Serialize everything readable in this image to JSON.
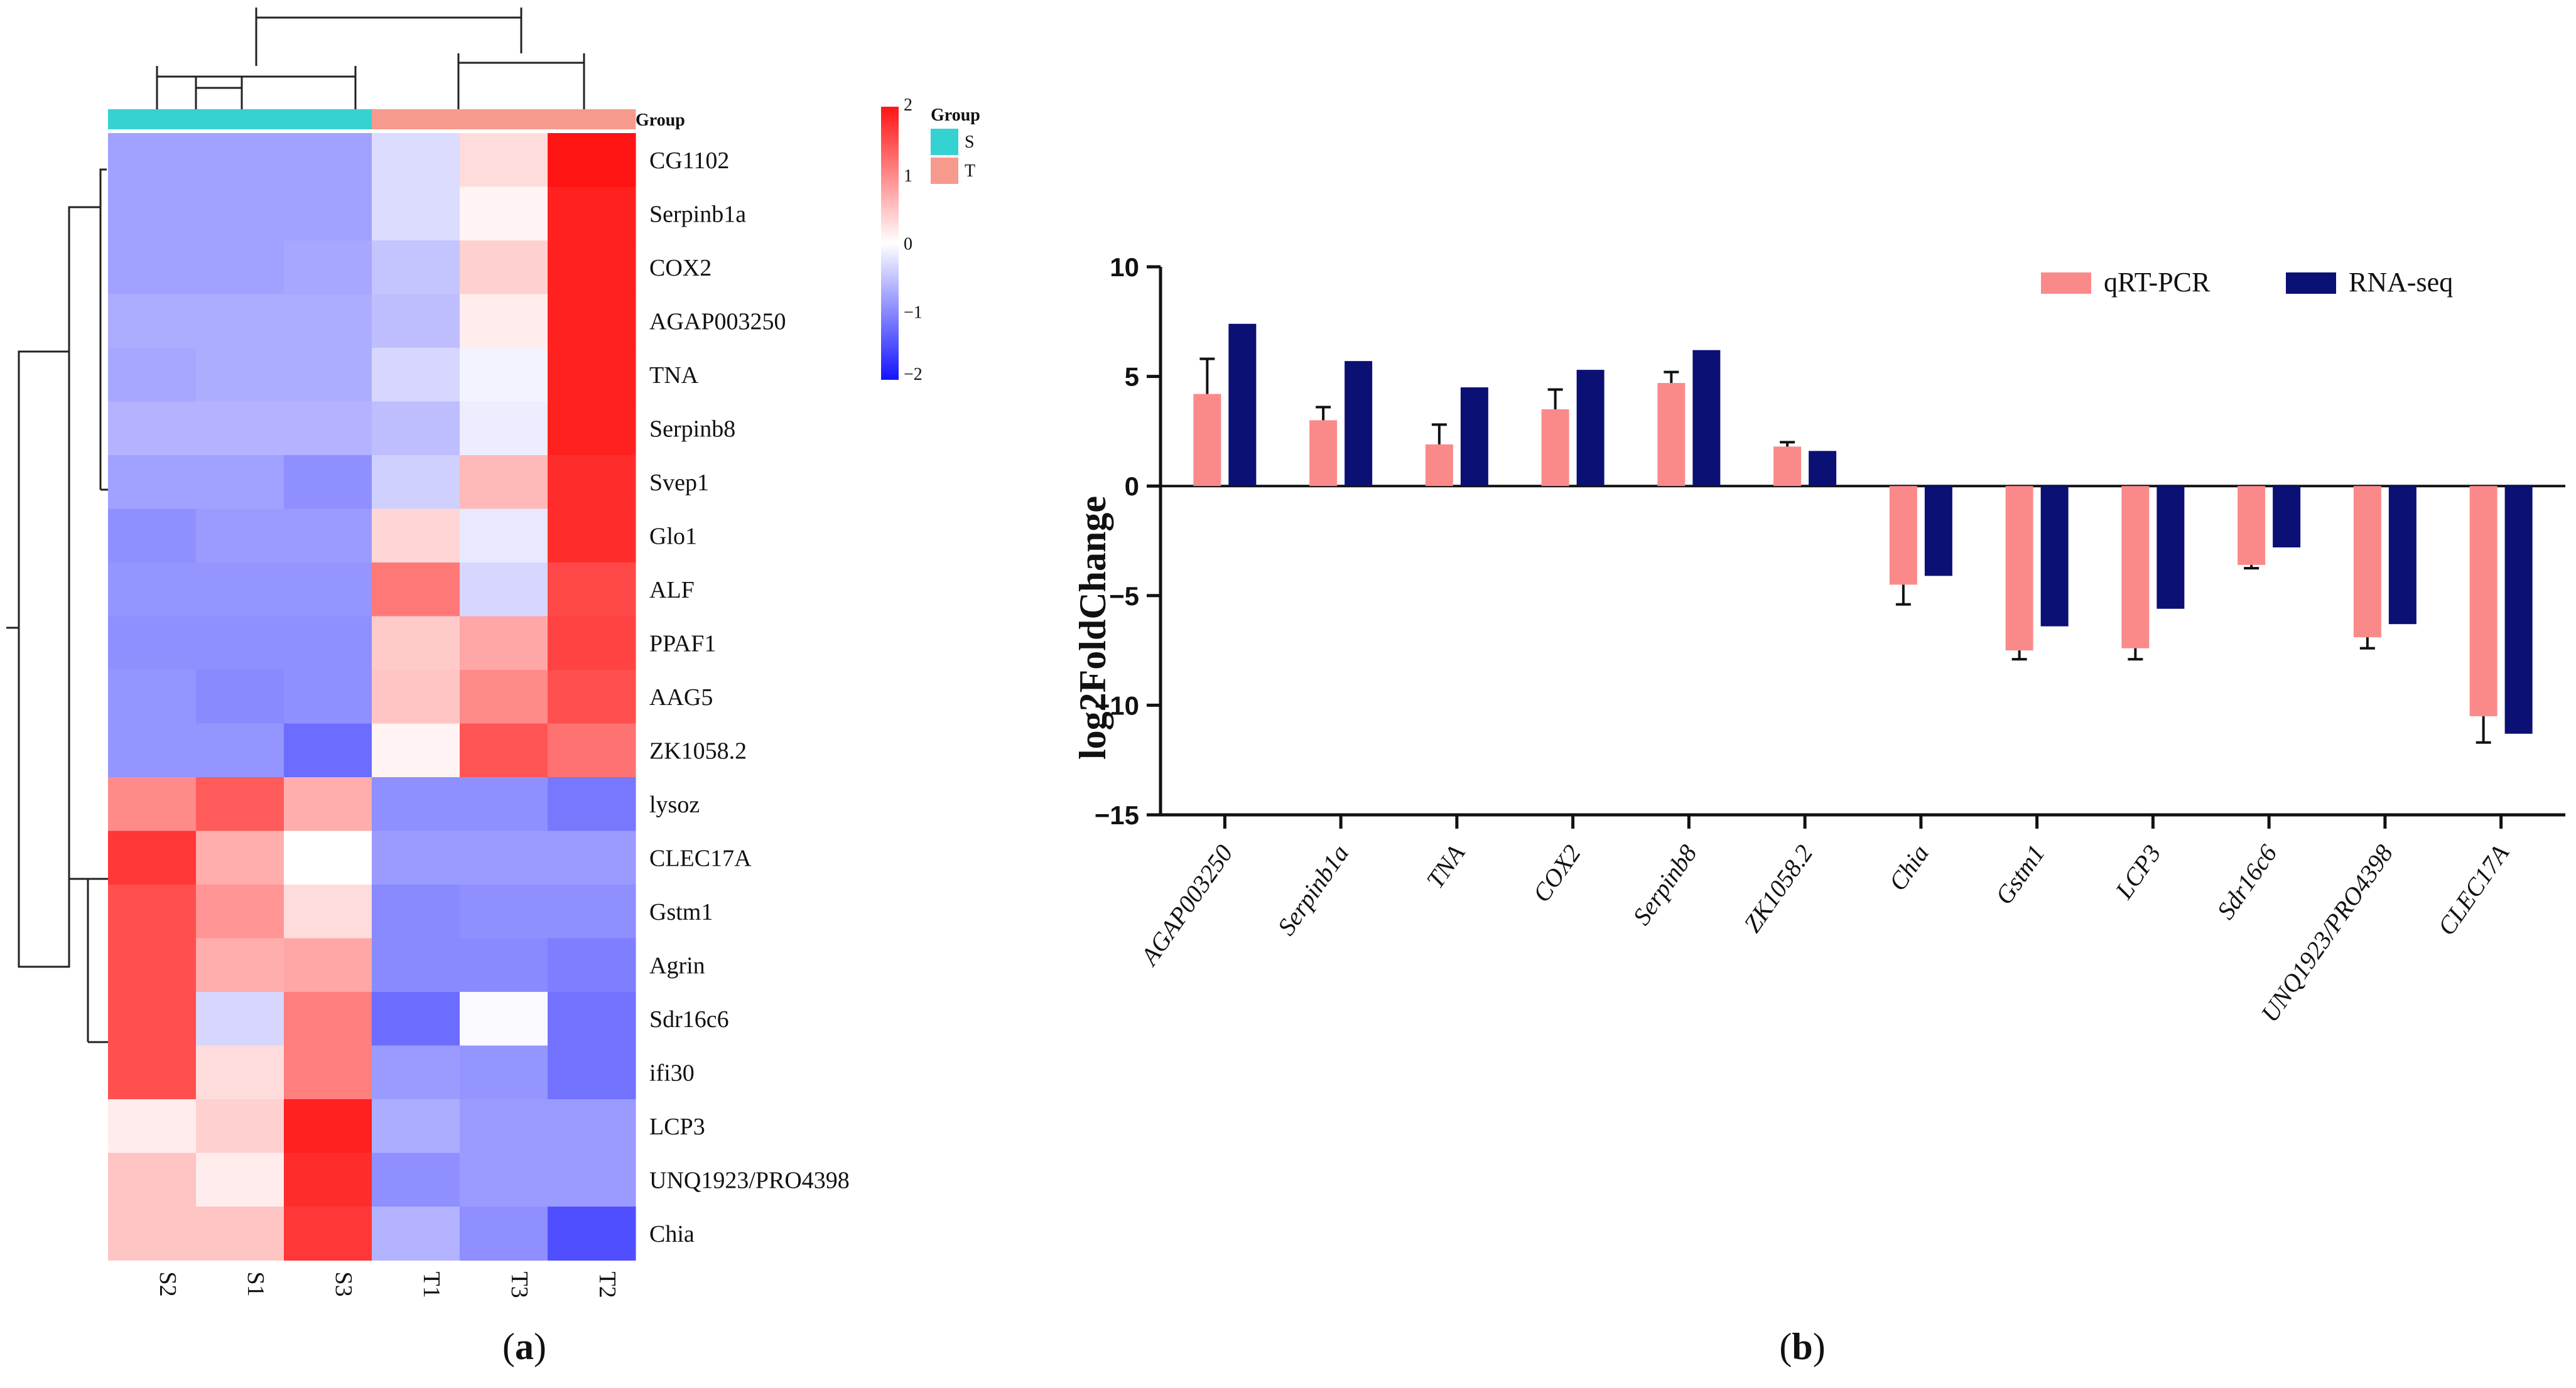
{
  "chart_data": [
    {
      "type": "heatmap",
      "panel_label": "a",
      "columns": [
        "S2",
        "S1",
        "S3",
        "T1",
        "T3",
        "T2"
      ],
      "column_groups": [
        "S",
        "S",
        "S",
        "T",
        "T",
        "T"
      ],
      "group_annotation_title": "Group",
      "group_legend": {
        "title": "Group",
        "items": [
          {
            "label": "S",
            "color": "#35d2d2"
          },
          {
            "label": "T",
            "color": "#f79a8e"
          }
        ]
      },
      "color_scale": {
        "min": -2,
        "max": 2,
        "ticks": [
          "2",
          "1",
          "0",
          "−1",
          "−2"
        ],
        "low_color": "#1414ff",
        "mid_color": "#ffffff",
        "high_color": "#ff1414"
      },
      "rows": [
        {
          "gene": "CG1102",
          "values": [
            -0.8,
            -0.8,
            -0.8,
            -0.3,
            0.3,
            2.0
          ]
        },
        {
          "gene": "Serpinb1a",
          "values": [
            -0.8,
            -0.8,
            -0.8,
            -0.3,
            0.1,
            1.9
          ]
        },
        {
          "gene": "COX2",
          "values": [
            -0.8,
            -0.8,
            -0.75,
            -0.5,
            0.4,
            1.9
          ]
        },
        {
          "gene": "AGAP003250",
          "values": [
            -0.7,
            -0.7,
            -0.7,
            -0.55,
            0.15,
            1.9
          ]
        },
        {
          "gene": "TNA",
          "values": [
            -0.75,
            -0.7,
            -0.7,
            -0.35,
            -0.1,
            1.9
          ]
        },
        {
          "gene": "Serpinb8",
          "values": [
            -0.65,
            -0.65,
            -0.65,
            -0.55,
            -0.15,
            1.9
          ]
        },
        {
          "gene": "Svep1",
          "values": [
            -0.8,
            -0.8,
            -0.95,
            -0.4,
            0.6,
            1.8
          ]
        },
        {
          "gene": "Glo1",
          "values": [
            -0.95,
            -0.85,
            -0.85,
            0.35,
            -0.2,
            1.8
          ]
        },
        {
          "gene": "ALF",
          "values": [
            -0.9,
            -0.9,
            -0.9,
            1.15,
            -0.35,
            1.55
          ]
        },
        {
          "gene": "PPAF1",
          "values": [
            -0.95,
            -0.95,
            -0.95,
            0.45,
            0.75,
            1.6
          ]
        },
        {
          "gene": "AAG5",
          "values": [
            -0.9,
            -1.0,
            -0.95,
            0.5,
            1.0,
            1.5
          ]
        },
        {
          "gene": "ZK1058.2",
          "values": [
            -0.9,
            -0.9,
            -1.25,
            0.1,
            1.45,
            1.2
          ]
        },
        {
          "gene": "lysoz",
          "values": [
            1.0,
            1.4,
            0.7,
            -0.95,
            -0.95,
            -1.15
          ]
        },
        {
          "gene": "CLEC17A",
          "values": [
            1.7,
            0.7,
            0.0,
            -0.85,
            -0.85,
            -0.85
          ]
        },
        {
          "gene": "Gstm1",
          "values": [
            1.5,
            0.9,
            0.3,
            -1.0,
            -0.95,
            -0.95
          ]
        },
        {
          "gene": "Agrin",
          "values": [
            1.5,
            0.7,
            0.75,
            -1.0,
            -1.0,
            -1.1
          ]
        },
        {
          "gene": "Sdr16c6",
          "values": [
            1.5,
            -0.35,
            1.1,
            -1.25,
            -0.05,
            -1.2
          ]
        },
        {
          "gene": "ifi30",
          "values": [
            1.5,
            0.3,
            1.1,
            -0.85,
            -0.9,
            -1.2
          ]
        },
        {
          "gene": "LCP3",
          "values": [
            0.15,
            0.4,
            1.9,
            -0.7,
            -0.85,
            -0.85
          ]
        },
        {
          "gene": "UNQ1923/PRO4398",
          "values": [
            0.5,
            0.15,
            1.8,
            -0.95,
            -0.85,
            -0.85
          ]
        },
        {
          "gene": "Chia",
          "values": [
            0.5,
            0.5,
            1.7,
            -0.65,
            -0.95,
            -1.5
          ]
        }
      ]
    },
    {
      "type": "bar",
      "panel_label": "b",
      "categories": [
        "AGAP003250",
        "Serpinb1a",
        "TNA",
        "COX2",
        "Serpinb8",
        "ZK1058.2",
        "Chia",
        "Gstm1",
        "LCP3",
        "Sdr16c6",
        "UNQ1923/PRO4398",
        "CLEC17A"
      ],
      "series": [
        {
          "name": "qRT-PCR",
          "color": "#fa8a8a",
          "values": [
            4.2,
            3.0,
            1.9,
            3.5,
            4.7,
            1.8,
            -4.5,
            -7.5,
            -7.4,
            -3.6,
            -6.9,
            -10.5
          ],
          "errors": [
            1.6,
            0.6,
            0.9,
            0.9,
            0.5,
            0.2,
            0.9,
            0.4,
            0.5,
            0.15,
            0.5,
            1.2
          ]
        },
        {
          "name": "RNA-seq",
          "color": "#0b1075",
          "values": [
            7.4,
            5.7,
            4.5,
            5.3,
            6.2,
            1.6,
            -4.1,
            -6.4,
            -5.6,
            -2.8,
            -6.3,
            -11.3
          ]
        }
      ],
      "ylabel": "log2FoldChange",
      "ylim": [
        -15,
        10
      ],
      "yticks": [
        "10",
        "5",
        "0",
        "−5",
        "−10",
        "−15"
      ],
      "legend_position": "top-right"
    }
  ]
}
